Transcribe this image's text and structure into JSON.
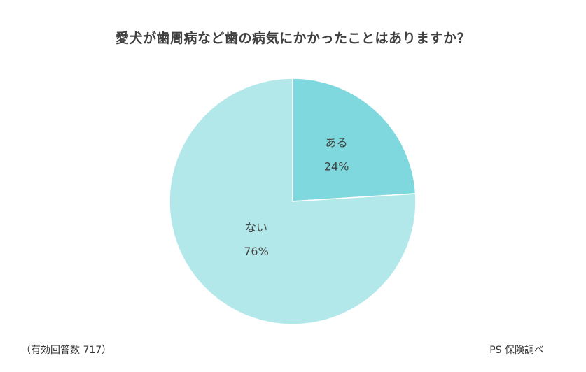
{
  "chart_data": {
    "type": "pie",
    "title": "愛犬が歯周病など歯の病気にかかったことはありますか？",
    "slices": [
      {
        "label": "ある",
        "value": 24,
        "value_label": "24%",
        "color": "#7fd8dd"
      },
      {
        "label": "ない",
        "value": 76,
        "value_label": "76%",
        "color": "#b3e8ea"
      }
    ],
    "legend": "none"
  },
  "footer": {
    "respondents": "（有効回答数 717）",
    "source": "PS 保険調べ"
  }
}
